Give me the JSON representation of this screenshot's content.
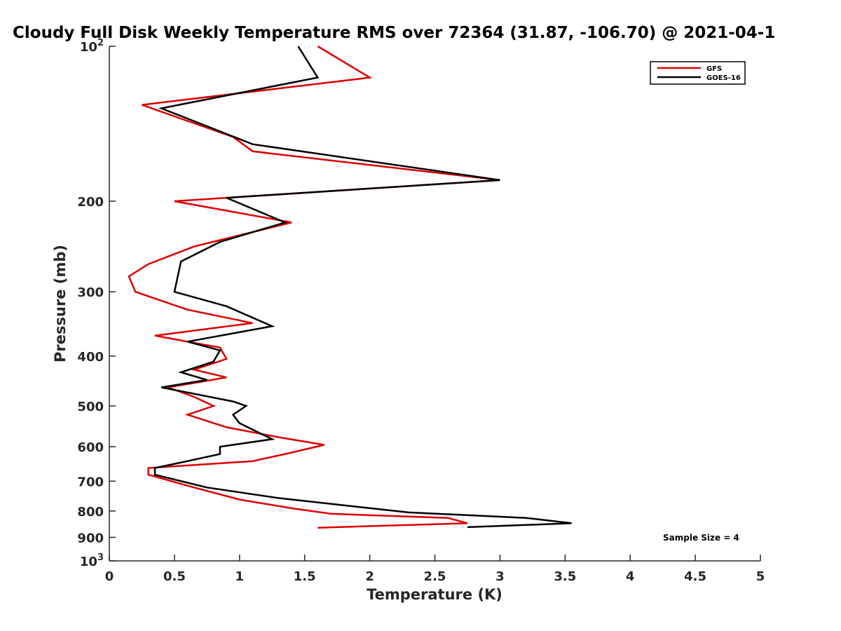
{
  "chart_data": {
    "type": "line",
    "title": "Cloudy Full Disk Weekly Temperature RMS over 72364 (31.87, -106.70) @ 2021-04-1",
    "xlabel": "Temperature (K)",
    "ylabel": "Pressure (mb)",
    "xlim": [
      0,
      5
    ],
    "ylim": [
      100,
      1000
    ],
    "y_scale": "log",
    "y_reversed": true,
    "grid": false,
    "legend_position": "top-right",
    "x_ticks": [
      0,
      0.5,
      1,
      1.5,
      2,
      2.5,
      3,
      3.5,
      4,
      4.5,
      5
    ],
    "x_tick_labels": [
      "0",
      "0.5",
      "1",
      "1.5",
      "2",
      "2.5",
      "3",
      "3.5",
      "4",
      "4.5",
      "5"
    ],
    "y_ticks": [
      100,
      200,
      300,
      400,
      500,
      600,
      700,
      800,
      900,
      1000
    ],
    "y_tick_labels": [
      {
        "base": "10",
        "exp": "2"
      },
      {
        "base": "200"
      },
      {
        "base": "300"
      },
      {
        "base": "400"
      },
      {
        "base": "500"
      },
      {
        "base": "600"
      },
      {
        "base": "700"
      },
      {
        "base": "800"
      },
      {
        "base": "900"
      },
      {
        "base": "10",
        "exp": "3"
      }
    ],
    "annotation": "Sample Size = 4",
    "series": [
      {
        "name": "GFS",
        "color": "#dd0000",
        "points": [
          [
            1.6,
            100
          ],
          [
            2.0,
            115
          ],
          [
            0.25,
            130
          ],
          [
            0.95,
            150
          ],
          [
            1.1,
            160
          ],
          [
            3.0,
            182
          ],
          [
            0.5,
            200
          ],
          [
            1.4,
            220
          ],
          [
            0.65,
            245
          ],
          [
            0.3,
            265
          ],
          [
            0.15,
            280
          ],
          [
            0.2,
            300
          ],
          [
            0.6,
            325
          ],
          [
            1.1,
            345
          ],
          [
            0.35,
            365
          ],
          [
            0.85,
            385
          ],
          [
            0.9,
            405
          ],
          [
            0.65,
            425
          ],
          [
            0.9,
            440
          ],
          [
            0.45,
            460
          ],
          [
            0.65,
            480
          ],
          [
            0.8,
            500
          ],
          [
            0.6,
            520
          ],
          [
            0.9,
            550
          ],
          [
            1.3,
            575
          ],
          [
            1.65,
            595
          ],
          [
            1.35,
            620
          ],
          [
            1.1,
            640
          ],
          [
            0.3,
            660
          ],
          [
            0.3,
            680
          ],
          [
            0.65,
            720
          ],
          [
            1.0,
            760
          ],
          [
            1.4,
            790
          ],
          [
            1.7,
            810
          ],
          [
            2.6,
            825
          ],
          [
            2.75,
            845
          ],
          [
            1.6,
            862
          ]
        ]
      },
      {
        "name": "GOES-16",
        "color": "#000000",
        "points": [
          [
            1.45,
            100
          ],
          [
            1.6,
            115
          ],
          [
            0.4,
            132
          ],
          [
            1.1,
            155
          ],
          [
            3.0,
            182
          ],
          [
            0.9,
            197
          ],
          [
            1.35,
            220
          ],
          [
            0.85,
            240
          ],
          [
            0.55,
            262
          ],
          [
            0.5,
            300
          ],
          [
            0.9,
            320
          ],
          [
            1.25,
            350
          ],
          [
            0.6,
            375
          ],
          [
            0.85,
            390
          ],
          [
            0.8,
            410
          ],
          [
            0.55,
            430
          ],
          [
            0.75,
            445
          ],
          [
            0.4,
            460
          ],
          [
            0.95,
            490
          ],
          [
            1.05,
            500
          ],
          [
            0.95,
            520
          ],
          [
            1.0,
            540
          ],
          [
            1.25,
            580
          ],
          [
            0.85,
            600
          ],
          [
            0.85,
            620
          ],
          [
            0.6,
            640
          ],
          [
            0.35,
            660
          ],
          [
            0.35,
            680
          ],
          [
            0.75,
            720
          ],
          [
            1.3,
            755
          ],
          [
            1.9,
            785
          ],
          [
            2.3,
            805
          ],
          [
            3.2,
            825
          ],
          [
            3.55,
            845
          ],
          [
            2.75,
            860
          ]
        ]
      }
    ]
  }
}
